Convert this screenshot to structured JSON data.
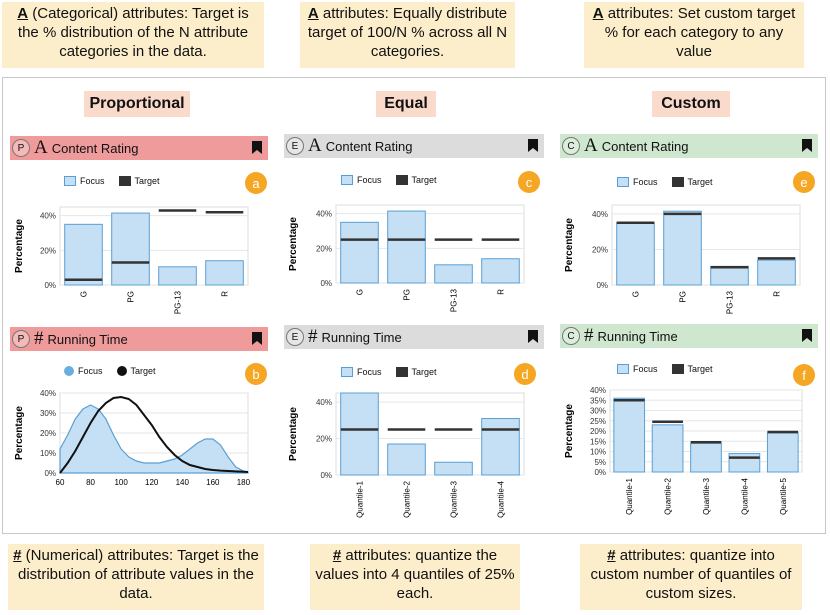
{
  "notes_top": [
    {
      "prefix": "A",
      "text": " (Categorical) attributes: Target is the % distribution of the N attribute categories in the data."
    },
    {
      "prefix": "A",
      "text": " attributes: Equally distribute target of 100/N % across all N categories."
    },
    {
      "prefix": "A",
      "text": " attributes: Set custom target % for each category to any value"
    }
  ],
  "notes_bottom": [
    {
      "prefix": "#",
      "text": " (Numerical) attributes: Target is the distribution of attribute values in the data."
    },
    {
      "prefix": "#",
      "text": " attributes: quantize the values into 4 quantiles of 25% each."
    },
    {
      "prefix": "#",
      "text": " attributes: quantize into custom number of quantiles of custom sizes."
    }
  ],
  "columns": [
    "Proportional",
    "Equal",
    "Custom"
  ],
  "panels": [
    {
      "mode": "P",
      "type": "A",
      "title": "Content Rating",
      "badge": "a"
    },
    {
      "mode": "E",
      "type": "A",
      "title": "Content Rating",
      "badge": "c"
    },
    {
      "mode": "C",
      "type": "A",
      "title": "Content Rating",
      "badge": "e"
    },
    {
      "mode": "P",
      "type": "#",
      "title": "Running Time",
      "badge": "b"
    },
    {
      "mode": "E",
      "type": "#",
      "title": "Running Time",
      "badge": "d"
    },
    {
      "mode": "C",
      "type": "#",
      "title": "Running Time",
      "badge": "f"
    }
  ],
  "legend": {
    "focus": "Focus",
    "target": "Target"
  },
  "colors": {
    "focus_fill": "#c5e0f5",
    "focus_stroke": "#5a9fd4",
    "target": "#333333",
    "badge": "#f5a623"
  },
  "chart_data": [
    {
      "id": "a",
      "type": "bar",
      "ylabel": "Percentage",
      "ylim": [
        0,
        45
      ],
      "yticks": [
        0,
        20,
        40
      ],
      "categories": [
        "G",
        "PG",
        "PG-13",
        "R"
      ],
      "series": [
        {
          "name": "Focus",
          "values": [
            35,
            41.5,
            10.5,
            14
          ]
        },
        {
          "name": "Target",
          "values": [
            3,
            13,
            43,
            42
          ]
        }
      ]
    },
    {
      "id": "c",
      "type": "bar",
      "ylabel": "Percentage",
      "ylim": [
        0,
        45
      ],
      "yticks": [
        0,
        20,
        40
      ],
      "categories": [
        "G",
        "PG",
        "PG-13",
        "R"
      ],
      "series": [
        {
          "name": "Focus",
          "values": [
            35,
            41.5,
            10.5,
            14
          ]
        },
        {
          "name": "Target",
          "values": [
            25,
            25,
            25,
            25
          ]
        }
      ]
    },
    {
      "id": "e",
      "type": "bar",
      "ylabel": "Percentage",
      "ylim": [
        0,
        45
      ],
      "yticks": [
        0,
        20,
        40
      ],
      "categories": [
        "G",
        "PG",
        "PG-13",
        "R"
      ],
      "series": [
        {
          "name": "Focus",
          "values": [
            35,
            41.5,
            10.5,
            14
          ]
        },
        {
          "name": "Target",
          "values": [
            35,
            40,
            10,
            15
          ]
        }
      ]
    },
    {
      "id": "b",
      "type": "area",
      "ylabel": "Percentage",
      "ylim": [
        0,
        40
      ],
      "yticks": [
        0,
        10,
        20,
        30,
        40
      ],
      "xlim": [
        60,
        183
      ],
      "xticks": [
        60,
        80,
        100,
        120,
        140,
        160,
        180
      ],
      "series": [
        {
          "name": "Focus",
          "x": [
            60,
            65,
            70,
            75,
            80,
            85,
            90,
            95,
            100,
            105,
            110,
            115,
            120,
            125,
            130,
            135,
            140,
            145,
            150,
            155,
            160,
            165,
            170,
            175,
            180,
            183
          ],
          "y": [
            12,
            19,
            27,
            32,
            34,
            32,
            27,
            19,
            12,
            8,
            6,
            5,
            5,
            5,
            6,
            7,
            9,
            12,
            15,
            17,
            17,
            14,
            8,
            3,
            1,
            0.5
          ]
        },
        {
          "name": "Target",
          "x": [
            60,
            65,
            70,
            75,
            80,
            85,
            90,
            95,
            100,
            105,
            110,
            115,
            120,
            125,
            130,
            135,
            140,
            145,
            150,
            155,
            160,
            165,
            170,
            175,
            180,
            183
          ],
          "y": [
            0,
            5,
            11,
            18,
            25,
            31,
            35,
            37.5,
            38,
            37,
            34,
            29,
            24,
            18,
            13,
            9,
            6,
            4,
            3,
            2,
            1.5,
            1.2,
            1,
            0.8,
            0.6,
            0.5
          ]
        }
      ]
    },
    {
      "id": "d",
      "type": "bar",
      "ylabel": "Percentage",
      "ylim": [
        0,
        45
      ],
      "yticks": [
        0,
        20,
        40
      ],
      "categories": [
        "Quantile-1",
        "Quantile-2",
        "Quantile-3",
        "Quantile-4"
      ],
      "series": [
        {
          "name": "Focus",
          "values": [
            45,
            17,
            7,
            31
          ]
        },
        {
          "name": "Target",
          "values": [
            25,
            25,
            25,
            25
          ]
        }
      ]
    },
    {
      "id": "f",
      "type": "bar",
      "ylabel": "Percentage",
      "ylim": [
        0,
        40
      ],
      "yticks": [
        0,
        5,
        10,
        15,
        20,
        25,
        30,
        35,
        40
      ],
      "categories": [
        "Quantile-1",
        "Quantile-2",
        "Quantile-3",
        "Quantile-4",
        "Quantile-5"
      ],
      "series": [
        {
          "name": "Focus",
          "values": [
            36,
            23,
            14,
            9,
            19
          ]
        },
        {
          "name": "Target",
          "values": [
            35,
            24.5,
            14.5,
            7,
            19.5
          ]
        }
      ]
    }
  ]
}
